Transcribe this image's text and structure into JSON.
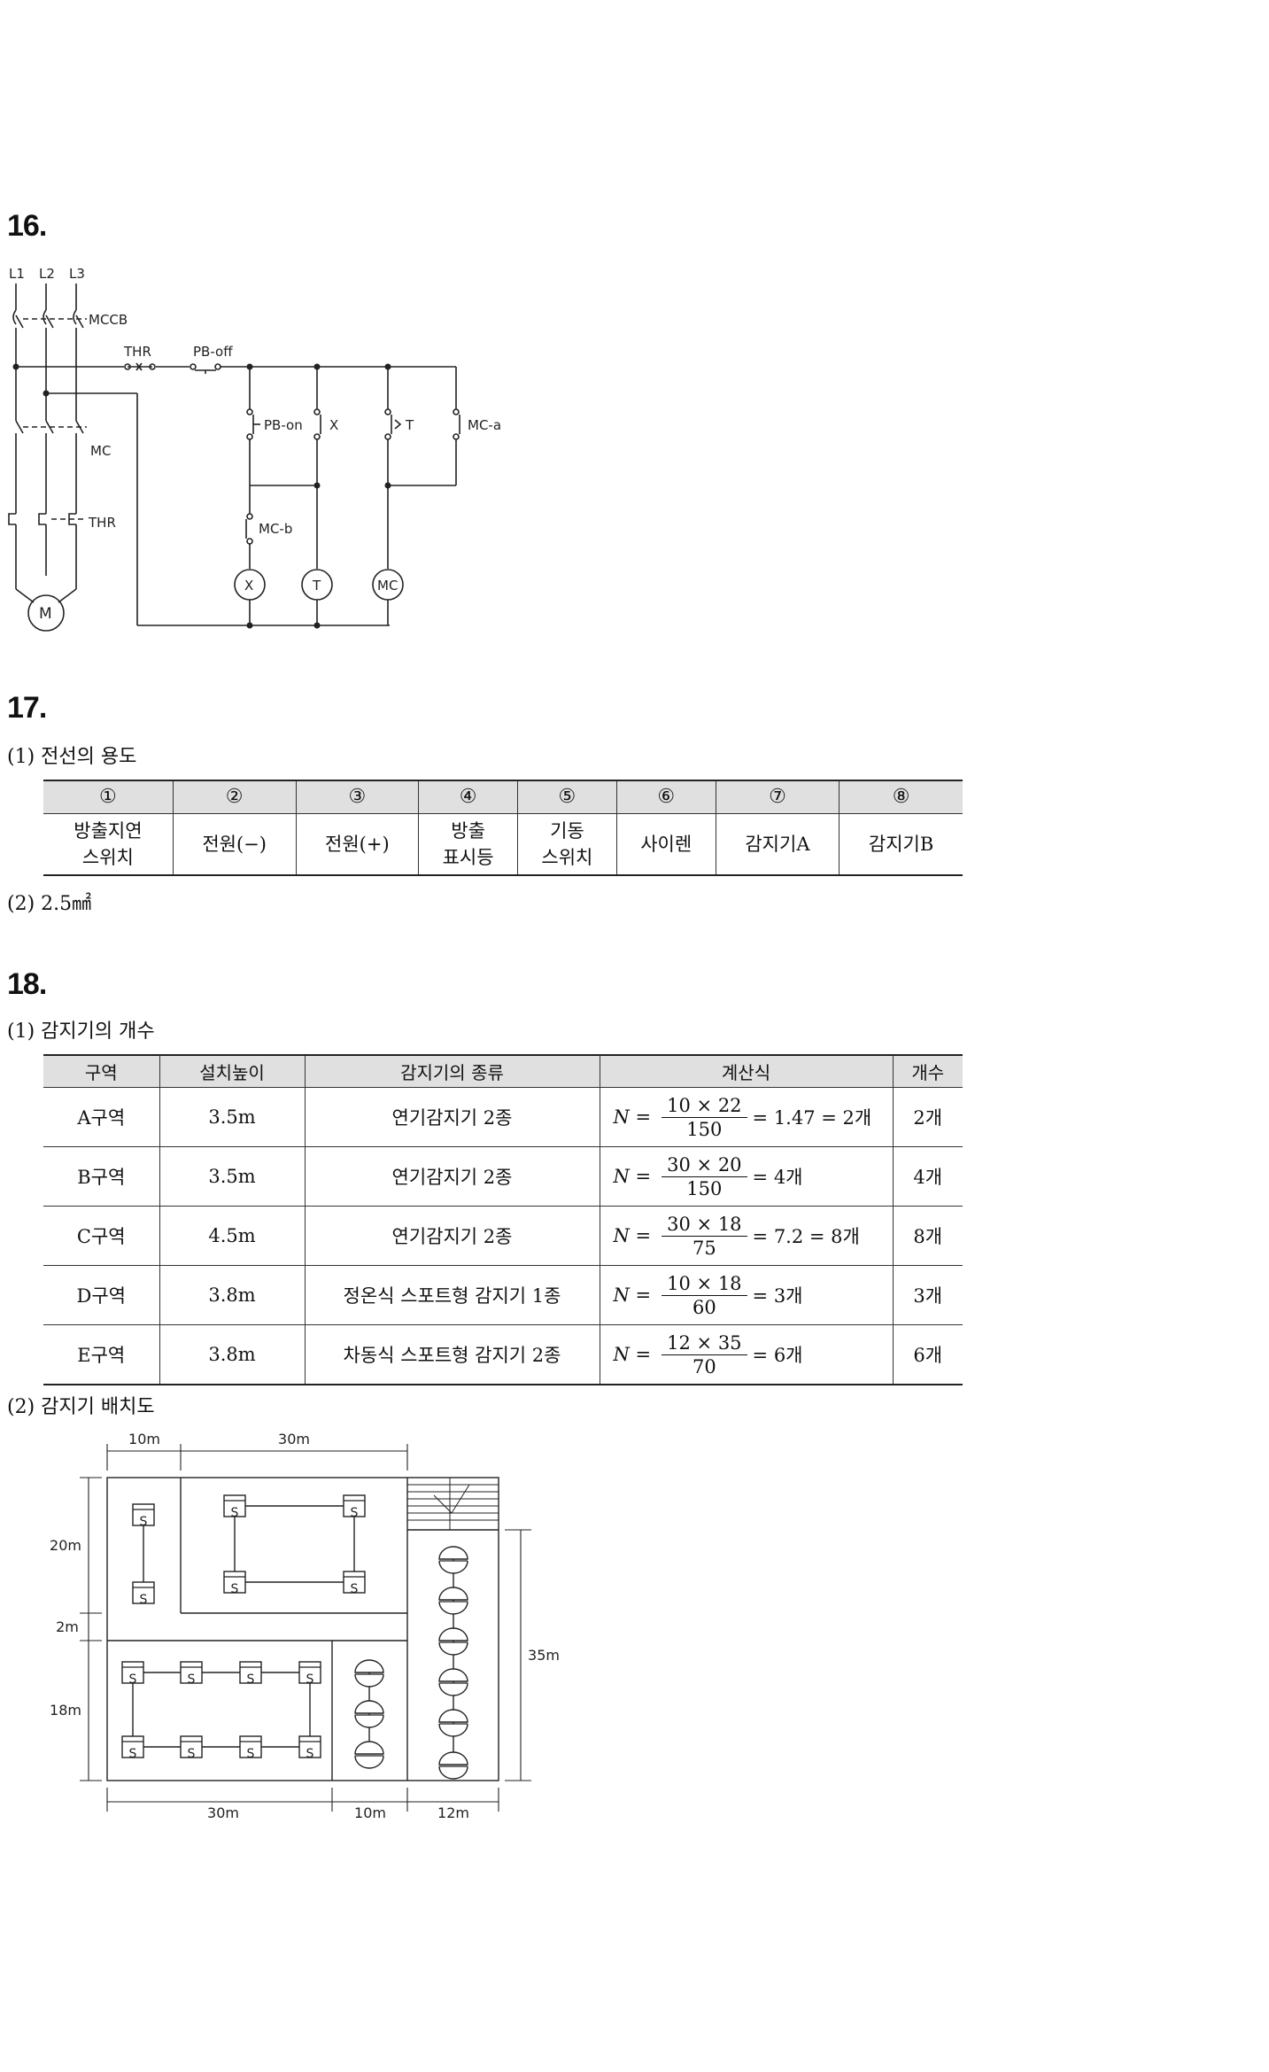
{
  "q16": {
    "number": "16.",
    "labels": {
      "l1": "L1",
      "l2": "L2",
      "l3": "L3",
      "mccb": "MCCB",
      "thr_top": "THR",
      "pb_off": "PB-off",
      "pb_on": "PB-on",
      "x_contact": "X",
      "t_contact": "T",
      "mc_a": "MC-a",
      "mc": "MC",
      "thr": "THR",
      "mc_b": "MC-b",
      "coil_x": "X",
      "coil_t": "T",
      "coil_mc": "MC",
      "motor": "M"
    }
  },
  "q17": {
    "number": "17.",
    "part1": "(1) 전선의 용도",
    "headers": [
      "①",
      "②",
      "③",
      "④",
      "⑤",
      "⑥",
      "⑦",
      "⑧"
    ],
    "cells": [
      [
        "방출지연",
        "스위치"
      ],
      [
        "전원(−)"
      ],
      [
        "전원(+)"
      ],
      [
        "방출",
        "표시등"
      ],
      [
        "기동",
        "스위치"
      ],
      [
        "사이렌"
      ],
      [
        "감지기A"
      ],
      [
        "감지기B"
      ]
    ],
    "part2": "(2) 2.5㎟"
  },
  "q18": {
    "number": "18.",
    "part1": "(1) 감지기의 개수",
    "headers": [
      "구역",
      "설치높이",
      "감지기의 종류",
      "계산식",
      "개수"
    ],
    "rows": [
      {
        "zone": "A구역",
        "height": "3.5m",
        "type": "연기감지기 2종",
        "n": "N =",
        "num": "10 × 22",
        "den": "150",
        "result": "= 1.47 = 2개",
        "count": "2개"
      },
      {
        "zone": "B구역",
        "height": "3.5m",
        "type": "연기감지기 2종",
        "n": "N =",
        "num": "30 × 20",
        "den": "150",
        "result": "= 4개",
        "count": "4개"
      },
      {
        "zone": "C구역",
        "height": "4.5m",
        "type": "연기감지기 2종",
        "n": "N =",
        "num": "30 × 18",
        "den": "75",
        "result": "= 7.2 = 8개",
        "count": "8개"
      },
      {
        "zone": "D구역",
        "height": "3.8m",
        "type": "정온식 스포트형 감지기 1종",
        "n": "N =",
        "num": "10 × 18",
        "den": "60",
        "result": "= 3개",
        "count": "3개"
      },
      {
        "zone": "E구역",
        "height": "3.8m",
        "type": "차동식 스포트형 감지기 2종",
        "n": "N =",
        "num": "12 × 35",
        "den": "70",
        "result": "= 6개",
        "count": "6개"
      }
    ],
    "part2": "(2) 감지기 배치도",
    "layout": {
      "dim_top_left": "10m",
      "dim_top_right": "30m",
      "dim_20": "20m",
      "dim_2": "2m",
      "dim_18": "18m",
      "dim_35": "35m",
      "dim_bottom_30": "30m",
      "dim_bottom_10": "10m",
      "dim_bottom_12": "12m",
      "smoke_label": "S"
    }
  }
}
